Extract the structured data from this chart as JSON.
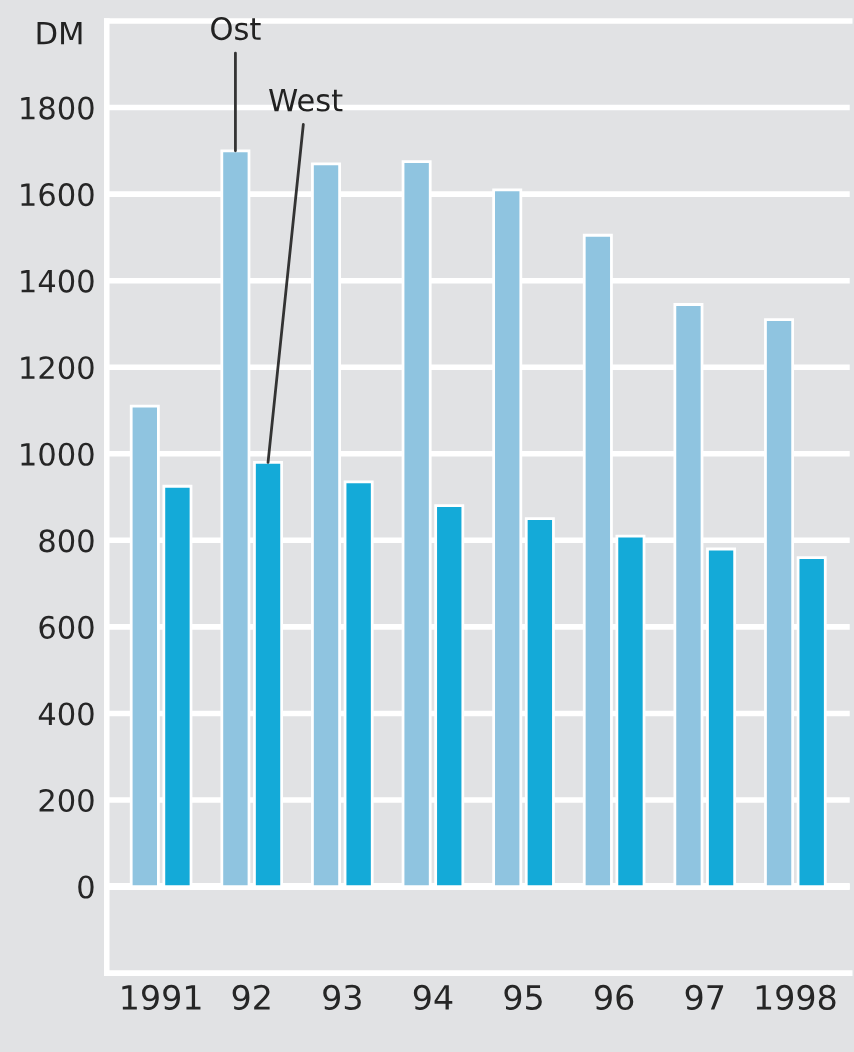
{
  "chart_data": {
    "type": "bar",
    "ylabel": "DM",
    "categories": [
      "1991",
      "92",
      "93",
      "94",
      "95",
      "96",
      "97",
      "1998"
    ],
    "series": [
      {
        "name": "Ost",
        "color": "#8fc4e0",
        "values": [
          1110,
          1700,
          1670,
          1675,
          1610,
          1505,
          1345,
          1310
        ]
      },
      {
        "name": "West",
        "color": "#14aad8",
        "values": [
          925,
          980,
          935,
          880,
          850,
          810,
          780,
          760
        ]
      }
    ],
    "ylim": [
      -200,
      2000
    ],
    "yticks": [
      0,
      200,
      400,
      600,
      800,
      1000,
      1200,
      1400,
      1600,
      1800
    ],
    "grid": "y",
    "legend": false
  }
}
